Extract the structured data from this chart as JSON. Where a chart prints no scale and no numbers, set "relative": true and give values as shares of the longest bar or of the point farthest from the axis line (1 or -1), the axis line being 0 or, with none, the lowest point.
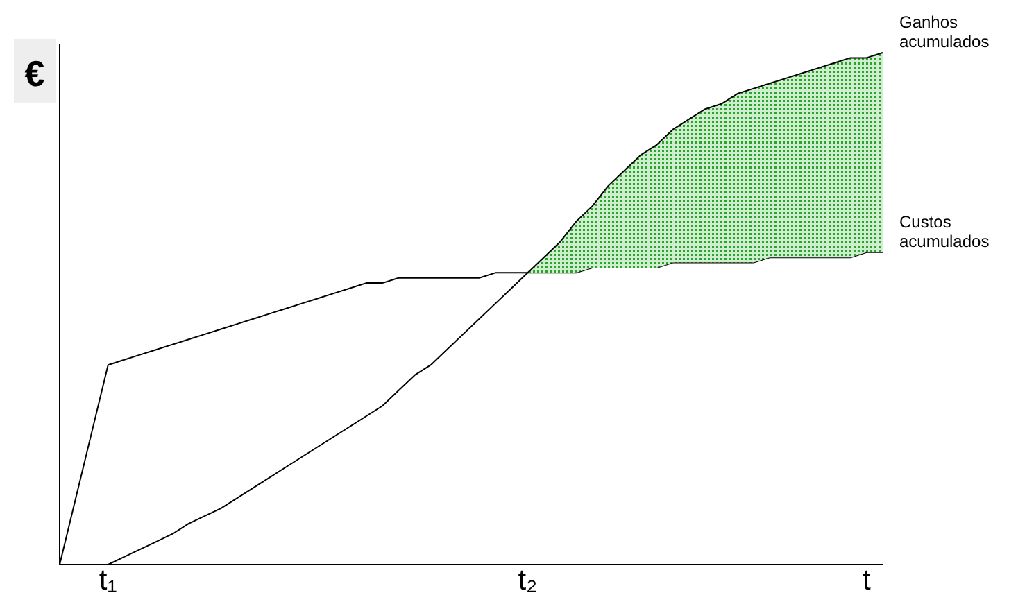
{
  "chart_data": {
    "type": "line",
    "relative": true,
    "ylabel": "€",
    "categories": [
      null,
      null,
      null,
      "t₁",
      null,
      null,
      null,
      null,
      null,
      null,
      null,
      null,
      null,
      null,
      null,
      null,
      null,
      null,
      null,
      null,
      null,
      null,
      null,
      null,
      null,
      null,
      null,
      null,
      null,
      "t₂",
      null,
      null,
      null,
      null,
      null,
      null,
      null,
      null,
      null,
      null,
      null,
      null,
      null,
      null,
      null,
      null,
      null,
      null,
      null,
      null,
      "t",
      null
    ],
    "series": [
      {
        "name": "Custos acumulados",
        "color": "#000000",
        "values": [
          0,
          0.13,
          0.26,
          0.39,
          0.4,
          0.41,
          0.42,
          0.43,
          0.44,
          0.45,
          0.46,
          0.47,
          0.48,
          0.49,
          0.5,
          0.51,
          0.52,
          0.53,
          0.54,
          0.55,
          0.55,
          0.56,
          0.56,
          0.56,
          0.56,
          0.56,
          0.56,
          0.57,
          0.57,
          0.57,
          0.57,
          0.57,
          0.57,
          0.58,
          0.58,
          0.58,
          0.58,
          0.58,
          0.59,
          0.59,
          0.59,
          0.59,
          0.59,
          0.59,
          0.6,
          0.6,
          0.6,
          0.6,
          0.6,
          0.6,
          0.61,
          0.61
        ]
      },
      {
        "name": "Ganhos acumulados",
        "color": "#000000",
        "values": [
          null,
          null,
          null,
          0,
          0.015,
          0.03,
          0.045,
          0.06,
          0.08,
          0.095,
          0.11,
          0.13,
          0.15,
          0.17,
          0.19,
          0.21,
          0.23,
          0.25,
          0.27,
          0.29,
          0.31,
          0.34,
          0.37,
          0.39,
          0.42,
          0.45,
          0.48,
          0.51,
          0.54,
          0.57,
          0.6,
          0.63,
          0.67,
          0.7,
          0.74,
          0.77,
          0.8,
          0.82,
          0.85,
          0.87,
          0.89,
          0.9,
          0.92,
          0.93,
          0.94,
          0.95,
          0.96,
          0.97,
          0.98,
          0.99,
          0.99,
          1
        ],
        "lower": [
          null,
          null,
          null,
          null,
          null,
          null,
          null,
          null,
          null,
          null,
          null,
          null,
          null,
          null,
          null,
          null,
          null,
          null,
          null,
          null,
          null,
          null,
          null,
          null,
          null,
          null,
          null,
          null,
          null,
          0.57,
          0.57,
          0.57,
          0.57,
          0.58,
          0.58,
          0.58,
          0.58,
          0.58,
          0.59,
          0.59,
          0.59,
          0.59,
          0.59,
          0.59,
          0.6,
          0.6,
          0.6,
          0.6,
          0.6,
          0.6,
          0.61,
          0.61
        ],
        "upper": [
          null,
          null,
          null,
          null,
          null,
          null,
          null,
          null,
          null,
          null,
          null,
          null,
          null,
          null,
          null,
          null,
          null,
          null,
          null,
          null,
          null,
          null,
          null,
          null,
          null,
          null,
          null,
          null,
          null,
          0.57,
          0.6,
          0.63,
          0.67,
          0.7,
          0.74,
          0.77,
          0.8,
          0.82,
          0.85,
          0.87,
          0.89,
          0.9,
          0.92,
          0.93,
          0.94,
          0.95,
          0.96,
          0.97,
          0.98,
          0.99,
          0.99,
          1
        ]
      }
    ]
  }
}
